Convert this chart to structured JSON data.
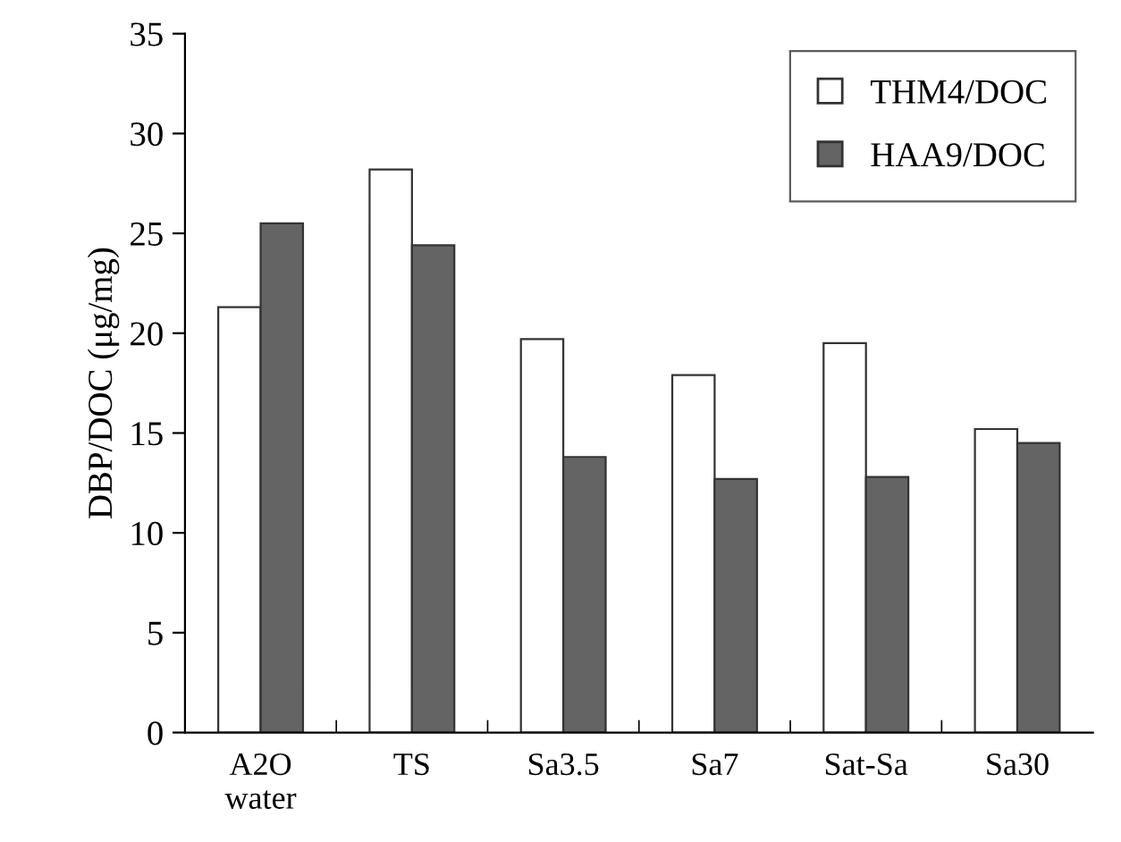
{
  "chart_data": {
    "type": "bar",
    "ylabel": "DBP/DOC (μg/mg)",
    "categories": [
      "A2O\nwater",
      "TS",
      "Sa3.5",
      "Sa7",
      "Sat-Sa",
      "Sa30"
    ],
    "series": [
      {
        "name": "THM4/DOC",
        "color": "#ffffff",
        "values": [
          21.3,
          28.2,
          19.7,
          17.9,
          19.5,
          15.2
        ]
      },
      {
        "name": "HAA9/DOC",
        "color": "#646464",
        "values": [
          25.5,
          24.4,
          13.8,
          12.7,
          12.8,
          14.5
        ]
      }
    ],
    "ylim": [
      0,
      35
    ],
    "yticks": [
      0,
      5,
      10,
      15,
      20,
      25,
      30,
      35
    ],
    "grid": false,
    "legend": "top right"
  }
}
